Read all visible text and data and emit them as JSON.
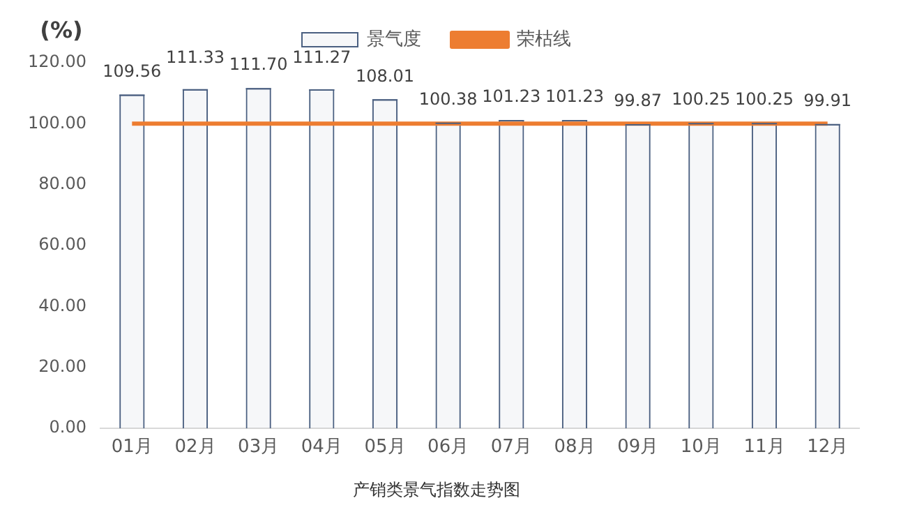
{
  "chart_data": {
    "type": "bar",
    "title": "产销类景气指数走势图",
    "ylabel": "(%)",
    "categories": [
      "01月",
      "02月",
      "03月",
      "04月",
      "05月",
      "06月",
      "07月",
      "08月",
      "09月",
      "10月",
      "11月",
      "12月"
    ],
    "series": [
      {
        "name": "景气度",
        "color": "#4a5f80",
        "values": [
          109.56,
          111.33,
          111.7,
          111.27,
          108.01,
          100.38,
          101.23,
          101.23,
          99.87,
          100.25,
          100.25,
          99.91
        ],
        "value_labels": [
          "109.56",
          "111.33",
          "111.70",
          "111.27",
          "108.01",
          "100.38",
          "101.23",
          "101.23",
          "99.87",
          "100.25",
          "100.25",
          "99.91"
        ]
      },
      {
        "name": "荣枯线",
        "type": "line",
        "color": "#ed7d31",
        "values": [
          100,
          100,
          100,
          100,
          100,
          100,
          100,
          100,
          100,
          100,
          100,
          100
        ]
      }
    ],
    "ylim": [
      0,
      120
    ],
    "yticks": [
      {
        "value": 0,
        "label": "0.00"
      },
      {
        "value": 20,
        "label": "20.00"
      },
      {
        "value": 40,
        "label": "40.00"
      },
      {
        "value": 60,
        "label": "60.00"
      },
      {
        "value": 80,
        "label": "80.00"
      },
      {
        "value": 100,
        "label": "100.00"
      },
      {
        "value": 120,
        "label": "120.00"
      }
    ],
    "grid": false,
    "legend": "top",
    "marker": "none",
    "line_style": "solid"
  }
}
